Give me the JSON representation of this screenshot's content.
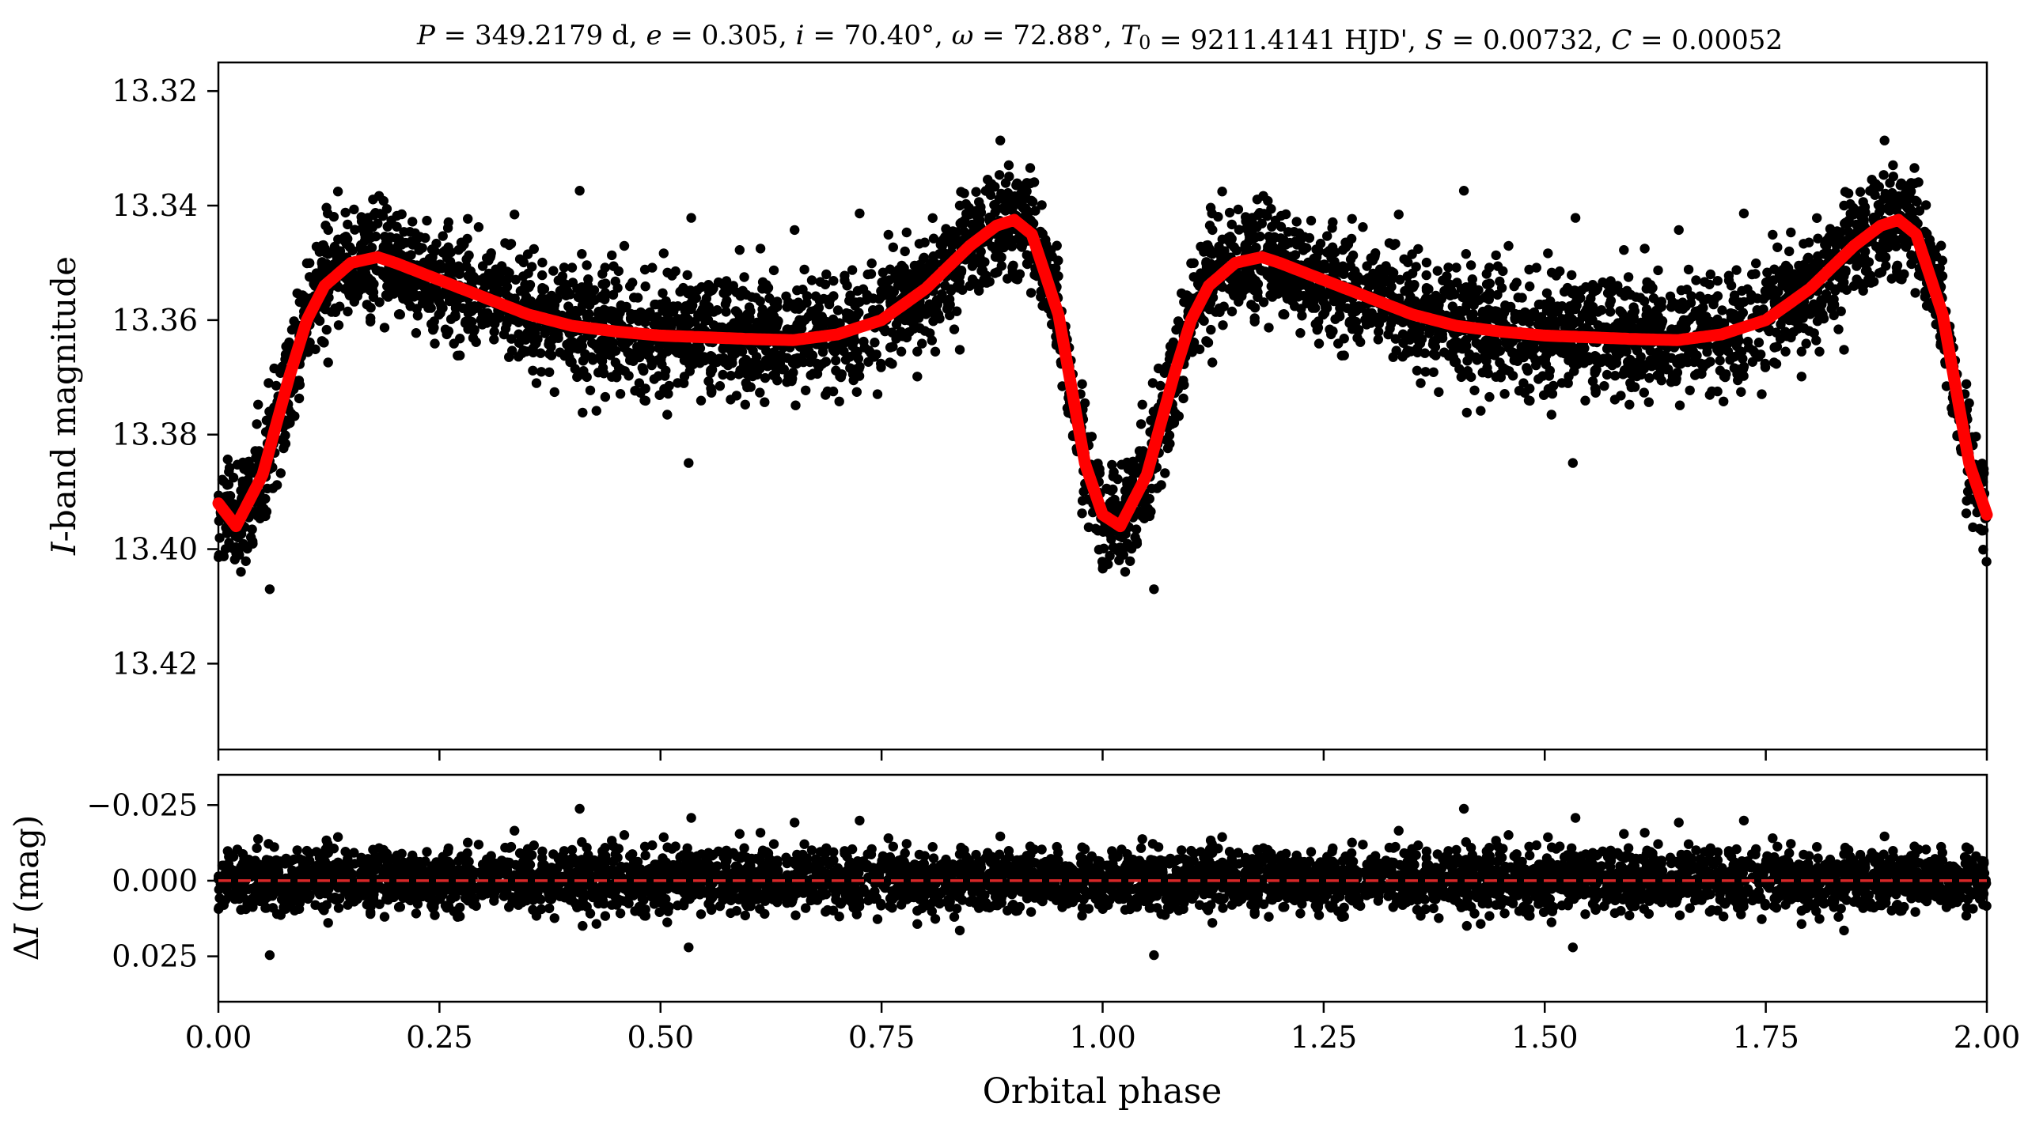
{
  "chart_data": [
    {
      "type": "scatter",
      "panel": "light curve",
      "title": "P = 349.2179 d, e = 0.305, i = 70.40°, ω = 72.88°, T0 = 9211.4141 HJD', S = 0.00732, C = 0.00052",
      "title_parts": {
        "P": "349.2179 d",
        "e": "0.305",
        "i": "70.40°",
        "omega": "72.88°",
        "T0": "9211.4141 HJD'",
        "S": "0.00732",
        "C": "0.00052"
      },
      "xlabel": "Orbital phase",
      "ylabel_italic": "I",
      "ylabel_rest": "-band magnitude",
      "xlim": [
        0.0,
        2.0
      ],
      "ylim": [
        13.435,
        13.315
      ],
      "y_inverted": true,
      "xticks": [
        0.0,
        0.25,
        0.5,
        0.75,
        1.0,
        1.25,
        1.5,
        1.75,
        2.0
      ],
      "yticks": [
        "13.32",
        "13.34",
        "13.36",
        "13.38",
        "13.40",
        "13.42"
      ],
      "grid": false,
      "series": [
        {
          "kind": "observations",
          "color": "#000000",
          "description_of_shape": "dense black points following the model with scatter ~0.008 mag"
        },
        {
          "kind": "model",
          "color": "#ff0000",
          "x": [
            0.0,
            0.02,
            0.05,
            0.08,
            0.1,
            0.12,
            0.15,
            0.18,
            0.2,
            0.25,
            0.3,
            0.35,
            0.4,
            0.45,
            0.5,
            0.55,
            0.6,
            0.65,
            0.7,
            0.75,
            0.8,
            0.85,
            0.88,
            0.9,
            0.92,
            0.95,
            0.98,
            1.0,
            1.02,
            1.05,
            1.08,
            1.1,
            1.12,
            1.15,
            1.18,
            1.2,
            1.25,
            1.3,
            1.35,
            1.4,
            1.45,
            1.5,
            1.55,
            1.6,
            1.65,
            1.7,
            1.75,
            1.8,
            1.85,
            1.88,
            1.9,
            1.92,
            1.95,
            1.98,
            2.0
          ],
          "y": [
            13.392,
            13.396,
            13.387,
            13.37,
            13.36,
            13.354,
            13.35,
            13.349,
            13.35,
            13.353,
            13.356,
            13.359,
            13.361,
            13.362,
            13.3627,
            13.363,
            13.3633,
            13.3635,
            13.3625,
            13.36,
            13.3545,
            13.347,
            13.3435,
            13.3425,
            13.345,
            13.359,
            13.385,
            13.394,
            13.396,
            13.387,
            13.37,
            13.36,
            13.354,
            13.35,
            13.349,
            13.35,
            13.353,
            13.356,
            13.359,
            13.361,
            13.362,
            13.3627,
            13.363,
            13.3633,
            13.3635,
            13.3625,
            13.36,
            13.3545,
            13.347,
            13.3435,
            13.3425,
            13.345,
            13.359,
            13.385,
            13.394
          ]
        }
      ]
    },
    {
      "type": "scatter",
      "panel": "residuals",
      "xlabel": "Orbital phase",
      "ylabel_delta": "Δ",
      "ylabel_italic": "I",
      "ylabel_rest": " (mag)",
      "xlim": [
        0.0,
        2.0
      ],
      "ylim": [
        0.04,
        -0.035
      ],
      "y_inverted": true,
      "xticks": [
        "0.00",
        "0.25",
        "0.50",
        "0.75",
        "1.00",
        "1.25",
        "1.50",
        "1.75",
        "2.00"
      ],
      "yticks": [
        "−0.025",
        "0.000",
        "0.025"
      ],
      "grid": false,
      "zero_line": {
        "y": 0.0,
        "color": "#d62728",
        "style": "dashed"
      },
      "series": [
        {
          "kind": "residuals",
          "color": "#000000",
          "scatter_sigma": 0.008
        }
      ]
    }
  ]
}
